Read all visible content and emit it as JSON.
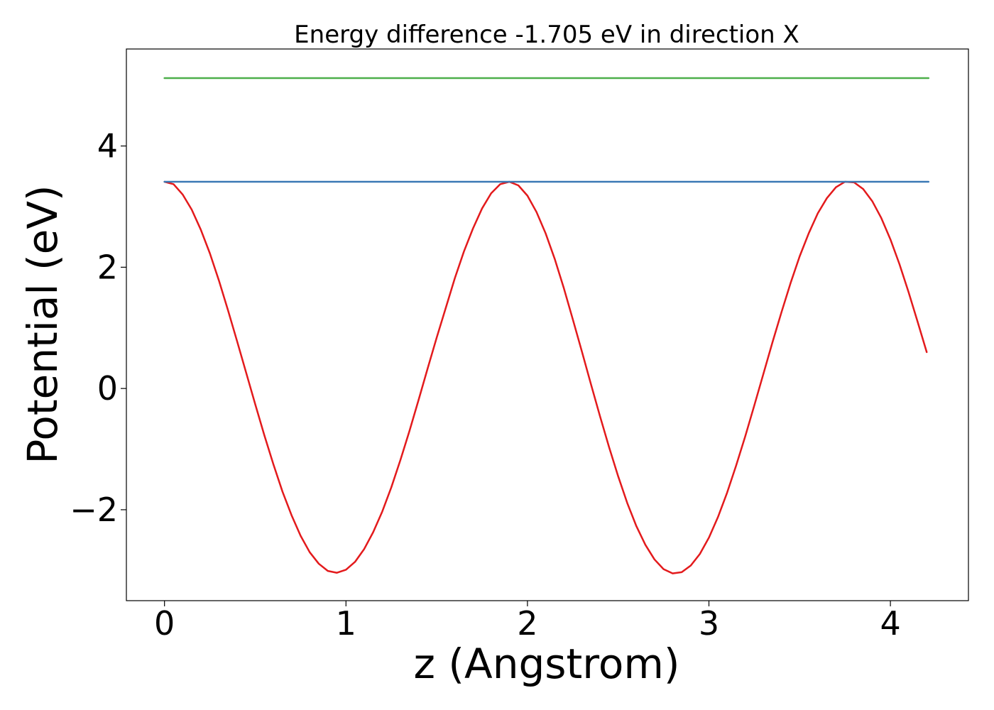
{
  "chart_data": {
    "type": "line",
    "title": "Energy difference -1.705 eV in direction X",
    "xlabel": "z (Angstrom)",
    "ylabel": "Potential (eV)",
    "xlim": [
      -0.21,
      4.43
    ],
    "ylim": [
      -3.5,
      5.6
    ],
    "xticks": [
      0,
      1,
      2,
      3,
      4
    ],
    "xtick_labels": [
      "0",
      "1",
      "2",
      "3",
      "4"
    ],
    "yticks": [
      -2,
      0,
      2,
      4
    ],
    "ytick_labels": [
      "−2",
      "0",
      "2",
      "4"
    ],
    "grid": false,
    "series": [
      {
        "color": "#e31a1c",
        "x": [
          0.0,
          0.05,
          0.1,
          0.15,
          0.2,
          0.25,
          0.3,
          0.35,
          0.4,
          0.45,
          0.5,
          0.55,
          0.6,
          0.65,
          0.7,
          0.75,
          0.8,
          0.85,
          0.9,
          0.95,
          1.0,
          1.05,
          1.1,
          1.15,
          1.2,
          1.25,
          1.3,
          1.35,
          1.4,
          1.45,
          1.5,
          1.55,
          1.6,
          1.65,
          1.7,
          1.75,
          1.8,
          1.85,
          1.9,
          1.95,
          2.0,
          2.05,
          2.1,
          2.15,
          2.2,
          2.25,
          2.3,
          2.35,
          2.4,
          2.45,
          2.5,
          2.55,
          2.6,
          2.65,
          2.7,
          2.75,
          2.8,
          2.85,
          2.9,
          2.95,
          3.0,
          3.05,
          3.1,
          3.15,
          3.2,
          3.25,
          3.3,
          3.35,
          3.4,
          3.45,
          3.5,
          3.55,
          3.6,
          3.65,
          3.7,
          3.75,
          3.8,
          3.85,
          3.9,
          3.95,
          4.0,
          4.05,
          4.1,
          4.15,
          4.2
        ],
        "y": [
          3.41,
          3.37,
          3.2,
          2.95,
          2.62,
          2.23,
          1.78,
          1.29,
          0.78,
          0.26,
          -0.26,
          -0.77,
          -1.25,
          -1.7,
          -2.09,
          -2.43,
          -2.7,
          -2.89,
          -3.01,
          -3.04,
          -2.99,
          -2.86,
          -2.65,
          -2.37,
          -2.03,
          -1.63,
          -1.18,
          -0.7,
          -0.19,
          0.33,
          0.84,
          1.33,
          1.82,
          2.26,
          2.64,
          2.97,
          3.22,
          3.37,
          3.41,
          3.35,
          3.18,
          2.91,
          2.56,
          2.14,
          1.66,
          1.14,
          0.61,
          0.07,
          -0.46,
          -0.97,
          -1.45,
          -1.89,
          -2.27,
          -2.58,
          -2.82,
          -2.98,
          -3.05,
          -3.03,
          -2.92,
          -2.73,
          -2.46,
          -2.12,
          -1.72,
          -1.27,
          -0.79,
          -0.28,
          0.24,
          0.76,
          1.26,
          1.74,
          2.18,
          2.56,
          2.89,
          3.14,
          3.32,
          3.41,
          3.4,
          3.29,
          3.09,
          2.81,
          2.46,
          2.05,
          1.59,
          1.1,
          0.6
        ]
      },
      {
        "color": "#3a78b5",
        "x": [
          0.0,
          4.21
        ],
        "y": [
          3.41,
          3.41
        ]
      },
      {
        "color": "#4daf4a",
        "x": [
          0.0,
          4.21
        ],
        "y": [
          5.12,
          5.12
        ]
      }
    ]
  }
}
